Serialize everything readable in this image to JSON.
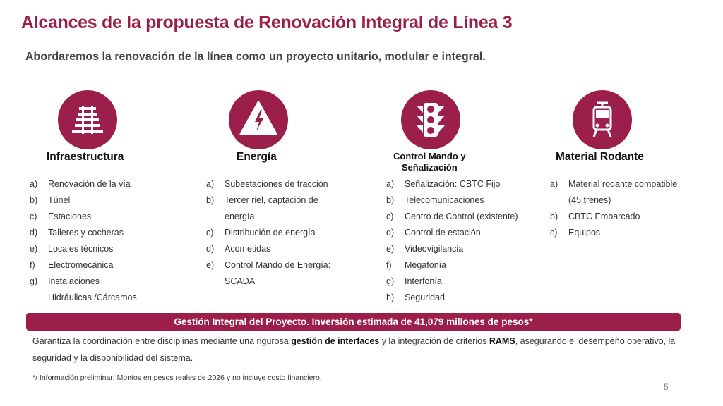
{
  "title": "Alcances de la propuesta de Renovación Integral de Línea 3",
  "subtitle": "Abordaremos la renovación de la línea como un proyecto unitario, modular e integral.",
  "accent_color": "#9b1f4a",
  "columns": [
    {
      "title": "Infraestructura",
      "icon": "railway-track-icon",
      "items": [
        {
          "letter": "a)",
          "text": "Renovación de la vía"
        },
        {
          "letter": "b)",
          "text": "Túnel"
        },
        {
          "letter": "c)",
          "text": "Estaciones"
        },
        {
          "letter": "d)",
          "text": "Talleres y cocheras"
        },
        {
          "letter": "e)",
          "text": "Locales técnicos"
        },
        {
          "letter": "f)",
          "text": "Electromecánica"
        },
        {
          "letter": "g)",
          "text": "Instalaciones"
        },
        {
          "letter": "",
          "text": "Hidráulicas /Cárcamos"
        }
      ]
    },
    {
      "title": "Energía",
      "icon": "high-voltage-icon",
      "items": [
        {
          "letter": "a)",
          "text": "Subestaciones de tracción"
        },
        {
          "letter": "b)",
          "text": "Tercer riel, captación de"
        },
        {
          "letter": "",
          "text": "energía"
        },
        {
          "letter": "c)",
          "text": "Distribución de energía"
        },
        {
          "letter": "d)",
          "text": "Acometidas"
        },
        {
          "letter": "e)",
          "text": "Control Mando de Energía:"
        },
        {
          "letter": "",
          "text": "SCADA"
        }
      ]
    },
    {
      "title_line1": "Control Mando y",
      "title_line2": "Señalización",
      "icon": "traffic-light-icon",
      "items": [
        {
          "letter": "a)",
          "text": "Señalización: CBTC Fijo"
        },
        {
          "letter": "b)",
          "text": "Telecomunicaciones"
        },
        {
          "letter": "c)",
          "text": "Centro de Control (existente)"
        },
        {
          "letter": "d)",
          "text": "Control de estación"
        },
        {
          "letter": "e)",
          "text": "Videovigilancia"
        },
        {
          "letter": "f)",
          "text": "Megafonía"
        },
        {
          "letter": "g)",
          "text": "Interfonía"
        },
        {
          "letter": "h)",
          "text": "Seguridad"
        }
      ]
    },
    {
      "title": "Material Rodante",
      "icon": "train-icon",
      "items": [
        {
          "letter": "a)",
          "text": "Material rodante compatible"
        },
        {
          "letter": "",
          "text": "(45 trenes)"
        },
        {
          "letter": "b)",
          "text": "CBTC Embarcado"
        },
        {
          "letter": "c)",
          "text": "Equipos"
        }
      ]
    }
  ],
  "banner": "Gestión Integral del Proyecto. Inversión estimada de 41,079 millones de pesos*",
  "body": {
    "p1": "Garantiza la coordinación entre disciplinas mediante una rigurosa ",
    "b1": "gestión de interfaces",
    "p2": " y la integración de criterios ",
    "b2": "RAMS",
    "p3": ", asegurando el desempeño operativo, la seguridad y la disponibilidad del sistema."
  },
  "footnote": "*/ Información preliminar: Montos en pesos reales de 2026 y no incluye costo financiero.",
  "page_number": "5"
}
